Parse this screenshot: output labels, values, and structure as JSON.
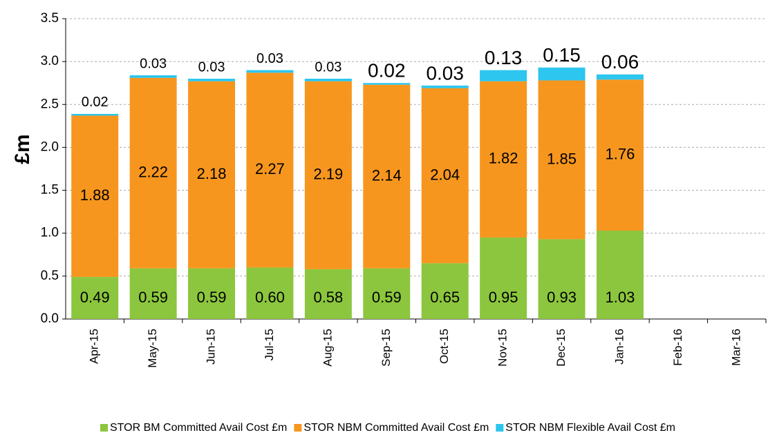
{
  "chart_data": {
    "type": "stacked_bar",
    "y_label": "£m",
    "categories": [
      "Apr-15",
      "May-15",
      "Jun-15",
      "Jul-15",
      "Aug-15",
      "Sep-15",
      "Oct-15",
      "Nov-15",
      "Dec-15",
      "Jan-16",
      "Feb-16",
      "Mar-16"
    ],
    "series": [
      {
        "name": "STOR BM  Committed Avail Cost £m",
        "color": "#8cc63e",
        "values": [
          0.49,
          0.59,
          0.59,
          0.6,
          0.58,
          0.59,
          0.65,
          0.95,
          0.93,
          1.03,
          null,
          null
        ],
        "value_labels": [
          "0.49",
          "0.59",
          "0.59",
          "0.60",
          "0.58",
          "0.59",
          "0.65",
          "0.95",
          "0.93",
          "1.03",
          null,
          null
        ]
      },
      {
        "name": "STOR NBM Committed Avail Cost £m",
        "color": "#f7961e",
        "values": [
          1.88,
          2.22,
          2.18,
          2.27,
          2.19,
          2.14,
          2.04,
          1.82,
          1.85,
          1.76,
          null,
          null
        ],
        "value_labels": [
          "1.88",
          "2.22",
          "2.18",
          "2.27",
          "2.19",
          "2.14",
          "2.04",
          "1.82",
          "1.85",
          "1.76",
          null,
          null
        ]
      },
      {
        "name": "STOR NBM Flexible Avail Cost £m",
        "color": "#2cc6ee",
        "values": [
          0.02,
          0.03,
          0.03,
          0.03,
          0.03,
          0.02,
          0.03,
          0.13,
          0.15,
          0.06,
          null,
          null
        ],
        "value_labels": [
          "0.02",
          "0.03",
          "0.03",
          "0.03",
          "0.03",
          "0.02",
          "0.03",
          "0.13",
          "0.15",
          "0.06",
          null,
          null
        ]
      }
    ],
    "ylim": [
      0,
      3.5
    ],
    "yticks": [
      {
        "value": 0,
        "label": "0.0"
      },
      0.5,
      {
        "value": 1,
        "label": "1.0"
      },
      1.5,
      {
        "value": 2,
        "label": "2.0"
      },
      2.5,
      {
        "value": 3,
        "label": "3.0"
      },
      3.5
    ],
    "grid": true,
    "legend": "bottom"
  }
}
